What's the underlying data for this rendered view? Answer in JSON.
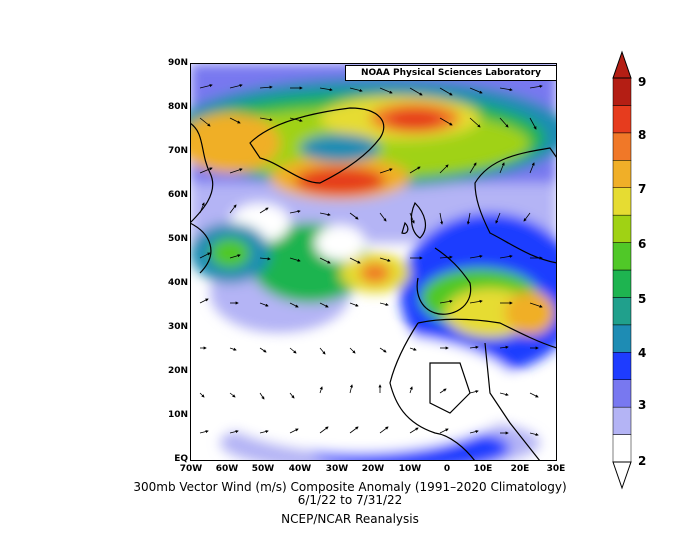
{
  "map": {
    "lab_label": "NOAA Physical Sciences Laboratory",
    "lat_labels": [
      "90N",
      "80N",
      "70N",
      "60N",
      "50N",
      "40N",
      "30N",
      "20N",
      "10N",
      "EQ"
    ],
    "lon_labels": [
      "70W",
      "60W",
      "50W",
      "40W",
      "30W",
      "20W",
      "10W",
      "0",
      "10E",
      "20E",
      "30E"
    ],
    "caption_line1": "300mb Vector Wind (m/s) Composite Anomaly (1991–2020 Climatology)",
    "caption_line2": "6/1/22  to 7/31/22",
    "caption_line3": "NCEP/NCAR Reanalysis"
  },
  "colorbar": {
    "labels": [
      "2",
      "3",
      "4",
      "5",
      "6",
      "7",
      "8",
      "9"
    ],
    "colors": [
      "#ffffff",
      "#b4b4f5",
      "#7878f0",
      "#1e3cff",
      "#1e8cb4",
      "#20a08c",
      "#1eb450",
      "#50c828",
      "#a0d214",
      "#e6dc32",
      "#f0af28",
      "#f07828",
      "#e63c1e",
      "#b41e14"
    ]
  }
}
